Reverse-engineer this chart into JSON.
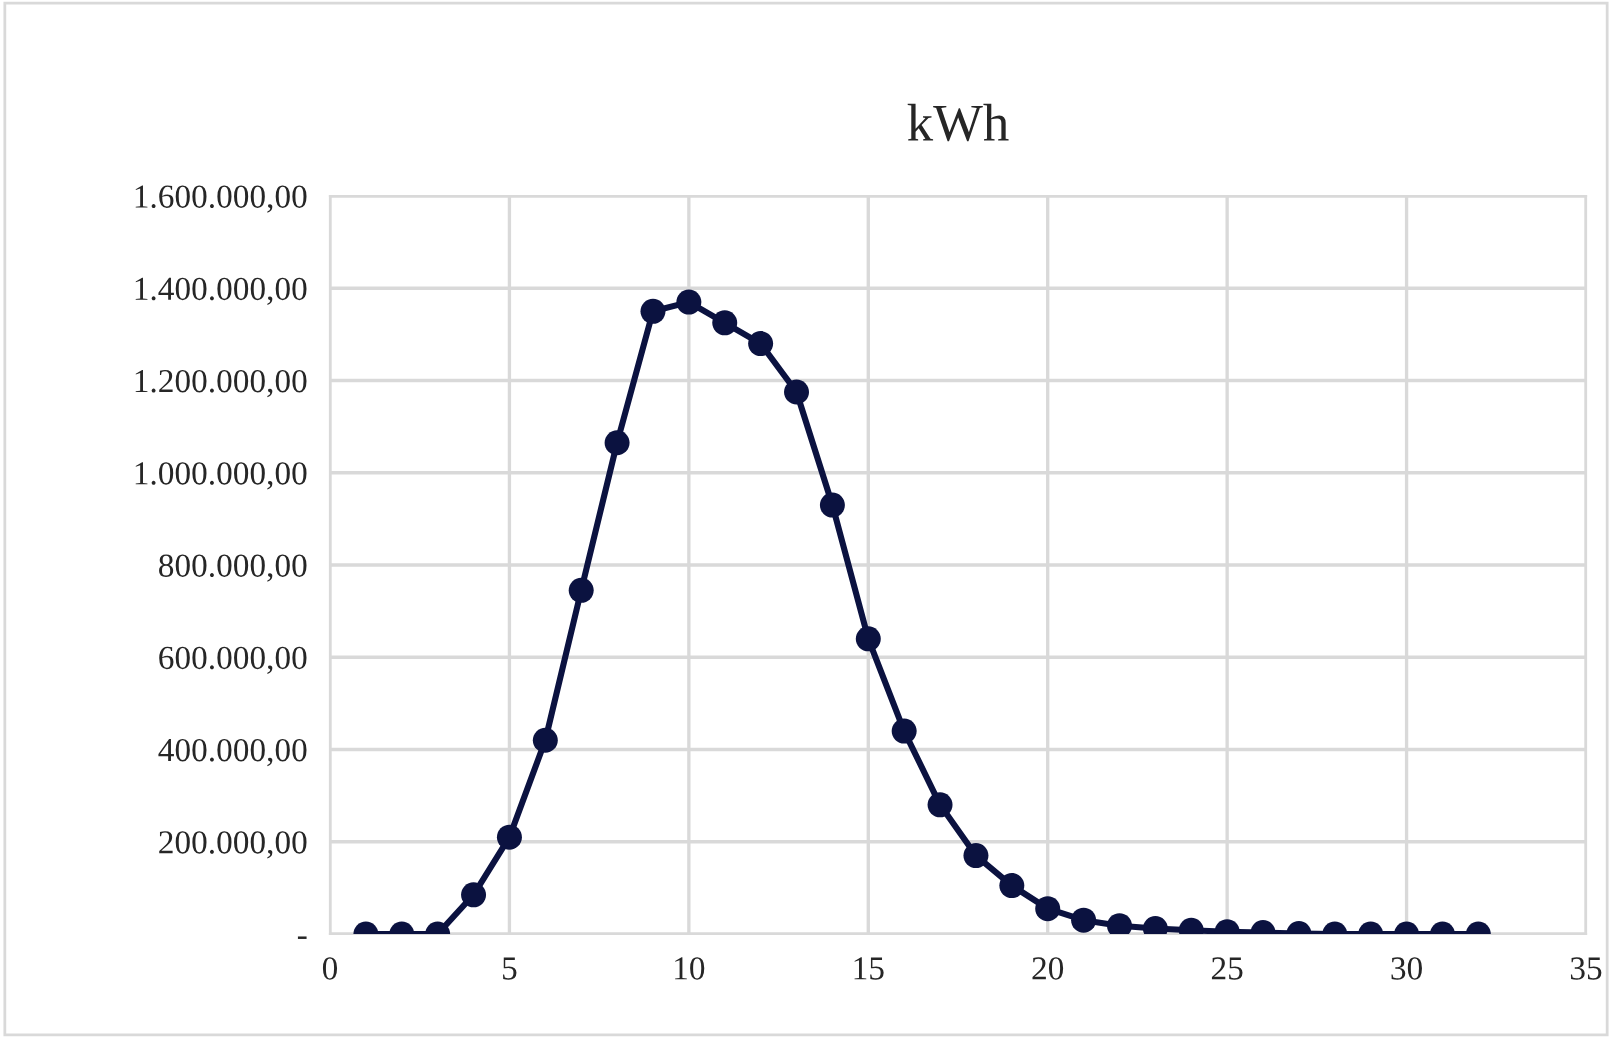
{
  "chart_data": {
    "type": "line",
    "title": "kWh",
    "x": [
      1,
      2,
      3,
      4,
      5,
      6,
      7,
      8,
      9,
      10,
      11,
      12,
      13,
      14,
      15,
      16,
      17,
      18,
      19,
      20,
      21,
      22,
      23,
      24,
      25,
      26,
      27,
      28,
      29,
      30,
      31,
      32
    ],
    "series": [
      {
        "color": "#0b1240",
        "values": [
          0,
          0,
          0,
          85000,
          210000,
          420000,
          745000,
          1065000,
          1350000,
          1370000,
          1325000,
          1280000,
          1175000,
          930000,
          640000,
          440000,
          280000,
          170000,
          105000,
          55000,
          30000,
          18000,
          12000,
          8000,
          5000,
          3000,
          1000,
          0,
          0,
          0,
          0,
          0
        ]
      }
    ],
    "xlim": [
      0,
      35
    ],
    "xticks": [
      0,
      5,
      10,
      15,
      20,
      25,
      30,
      35
    ],
    "ylim": [
      0,
      1600000
    ],
    "yticks": [
      {
        "value": 0,
        "label": "-"
      },
      {
        "value": 200000,
        "label": "200.000,00"
      },
      {
        "value": 400000,
        "label": "400.000,00"
      },
      {
        "value": 600000,
        "label": "600.000,00"
      },
      {
        "value": 800000,
        "label": "800.000,00"
      },
      {
        "value": 1000000,
        "label": "1.000.000,00"
      },
      {
        "value": 1200000,
        "label": "1.200.000,00"
      },
      {
        "value": 1400000,
        "label": "1.400.000,00"
      },
      {
        "value": 1600000,
        "label": "1.600.000,00"
      }
    ],
    "grid": true,
    "marker": "circle",
    "line_style": "solid",
    "legend": false
  }
}
